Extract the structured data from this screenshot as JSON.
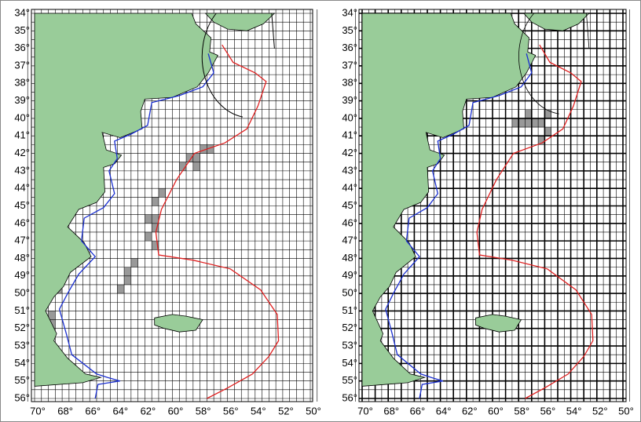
{
  "maps": [
    {
      "lat_labels": [
        "34°",
        "35°",
        "36°",
        "37°",
        "38°",
        "39°",
        "40°",
        "41°",
        "42°",
        "43°",
        "44°",
        "45°",
        "46°",
        "47°",
        "48°",
        "49°",
        "50°",
        "51°",
        "52°",
        "53°",
        "54°",
        "55°",
        "56°"
      ],
      "lon_labels": [
        "70°",
        "68°",
        "66°",
        "64°",
        "62°",
        "60°",
        "58°",
        "56°",
        "54°",
        "52°",
        "50°"
      ]
    },
    {
      "lat_labels": [
        "34°",
        "35°",
        "36°",
        "37°",
        "38°",
        "39°",
        "40°",
        "41°",
        "42°",
        "43°",
        "44°",
        "45°",
        "46°",
        "47°",
        "48°",
        "49°",
        "50°",
        "51°",
        "52°",
        "53°",
        "54°",
        "55°",
        "56°"
      ],
      "lon_labels": [
        "70°",
        "68°",
        "66°",
        "64°",
        "62°",
        "60°",
        "58°",
        "56°",
        "54°",
        "52°",
        "50°"
      ]
    }
  ]
}
